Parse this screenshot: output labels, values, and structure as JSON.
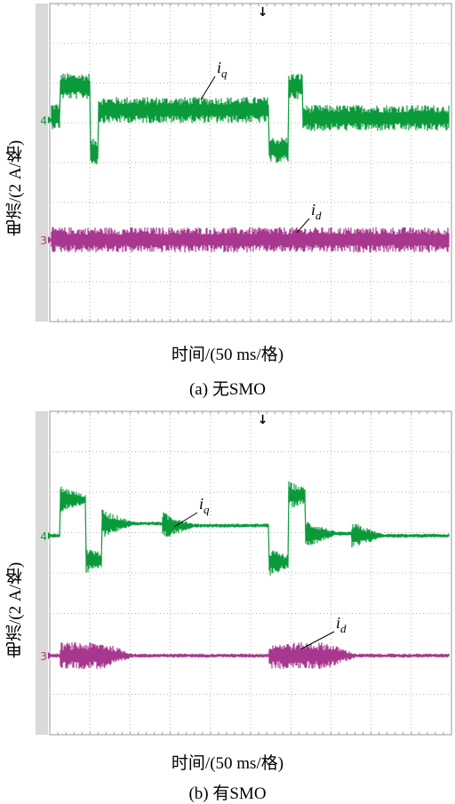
{
  "chart_data": [
    {
      "type": "line",
      "caption": "(a) 无SMO",
      "xlabel": "时间/(50 ms/格)",
      "ylabel": "电流/(2 A/格)",
      "grid": true,
      "x_divisions": 10,
      "y_divisions": 8,
      "trigger_marker": "↓",
      "series": [
        {
          "name": "iq",
          "label_main": "i",
          "label_sub": "q",
          "channel": "4",
          "color": "#0a9a3a",
          "level_div": 0,
          "noise_div": 0.33,
          "segments": [
            {
              "x0": 0.0,
              "x1": 0.25,
              "level": 0.1
            },
            {
              "x0": 0.25,
              "x1": 1.0,
              "level": 0.85
            },
            {
              "x0": 1.0,
              "x1": 1.2,
              "level": -0.8
            },
            {
              "x0": 1.2,
              "x1": 5.45,
              "level": 0.25
            },
            {
              "x0": 5.45,
              "x1": 5.95,
              "level": -0.75
            },
            {
              "x0": 5.95,
              "x1": 6.3,
              "level": 0.85
            },
            {
              "x0": 6.3,
              "x1": 10.0,
              "level": 0.05
            }
          ]
        },
        {
          "name": "id",
          "label_main": "i",
          "label_sub": "d",
          "channel": "3",
          "color": "#a8378f",
          "level_div": 0,
          "noise_div": 0.32,
          "segments": [
            {
              "x0": 0.0,
              "x1": 10.0,
              "level": 0
            }
          ]
        }
      ]
    },
    {
      "type": "line",
      "caption": "(b) 有SMO",
      "xlabel": "时间/(50 ms/格)",
      "ylabel": "电流/(2 A/格)",
      "grid": true,
      "x_divisions": 10,
      "y_divisions": 8,
      "trigger_marker": "↓",
      "series": [
        {
          "name": "iq",
          "label_main": "i",
          "label_sub": "q",
          "channel": "4",
          "color": "#0a9a3a",
          "level_div": 0,
          "noise_div": 0.05,
          "segments": [
            {
              "x0": 0.0,
              "x1": 0.25,
              "level": 0
            },
            {
              "x0": 0.25,
              "x1": 0.9,
              "level": 0.9
            },
            {
              "x0": 0.9,
              "x1": 1.3,
              "level": -0.6
            },
            {
              "x0": 1.3,
              "x1": 2.8,
              "level": 0.3
            },
            {
              "x0": 2.8,
              "x1": 5.45,
              "level": 0.25
            },
            {
              "x0": 5.45,
              "x1": 5.95,
              "level": -0.65
            },
            {
              "x0": 5.95,
              "x1": 6.35,
              "level": 1.0
            },
            {
              "x0": 6.35,
              "x1": 7.5,
              "level": 0.05
            },
            {
              "x0": 7.5,
              "x1": 10.0,
              "level": 0
            }
          ]
        },
        {
          "name": "id",
          "label_main": "i",
          "label_sub": "d",
          "channel": "3",
          "color": "#a8378f",
          "level_div": 0,
          "noise_div": 0.05,
          "segments": [
            {
              "x0": 0.0,
              "x1": 0.25,
              "level": 0
            },
            {
              "x0": 0.25,
              "x1": 1.3,
              "level": 0
            },
            {
              "x0": 1.3,
              "x1": 5.45,
              "level": 0
            },
            {
              "x0": 5.45,
              "x1": 6.85,
              "level": 0
            },
            {
              "x0": 6.85,
              "x1": 10.0,
              "level": 0
            }
          ]
        }
      ]
    }
  ]
}
